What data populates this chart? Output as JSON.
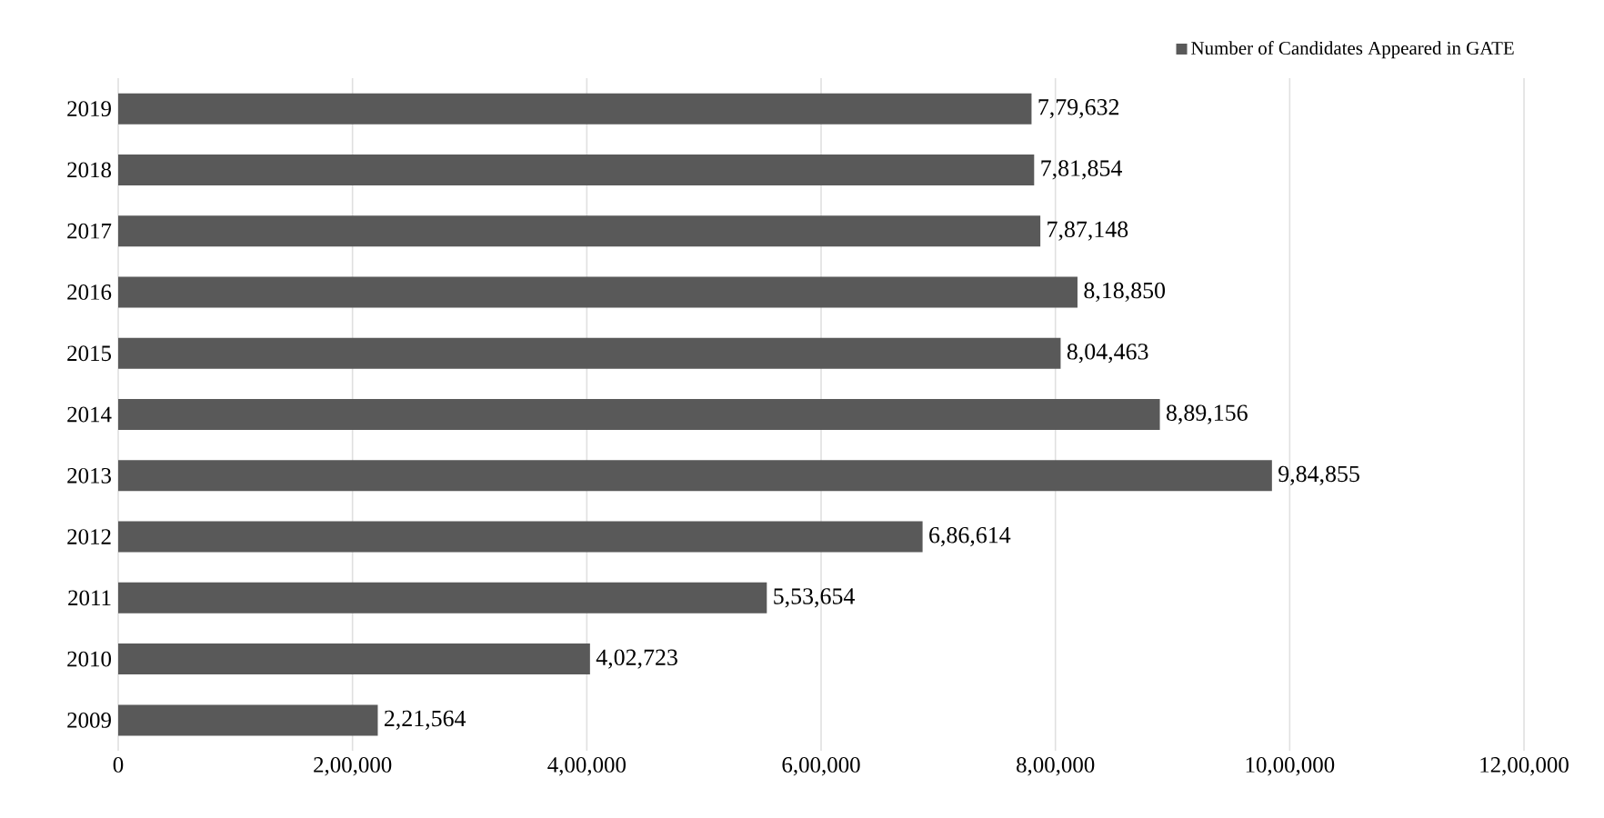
{
  "chart_data": {
    "type": "bar",
    "orientation": "horizontal",
    "categories": [
      "2019",
      "2018",
      "2017",
      "2016",
      "2015",
      "2014",
      "2013",
      "2012",
      "2011",
      "2010",
      "2009"
    ],
    "series": [
      {
        "name": "Number of Candidates Appeared in GATE",
        "color": "#595959",
        "values": [
          779632,
          781854,
          787148,
          818850,
          804463,
          889156,
          984855,
          686614,
          553654,
          402723,
          221564
        ],
        "value_labels": [
          "7,79,632",
          "7,81,854",
          "7,87,148",
          "8,18,850",
          "8,04,463",
          "8,89,156",
          "9,84,855",
          "6,86,614",
          "5,53,654",
          "4,02,723",
          "2,21,564"
        ]
      }
    ],
    "xlim": [
      0,
      1200000
    ],
    "xticks": [
      0,
      {
        "value": 200000,
        "label": "2,00,000"
      },
      {
        "value": 400000,
        "label": "4,00,000"
      },
      {
        "value": 600000,
        "label": "6,00,000"
      },
      {
        "value": 800000,
        "label": "8,00,000"
      },
      {
        "value": 1000000,
        "label": "10,00,000"
      },
      {
        "value": 1200000,
        "label": "12,00,000"
      }
    ],
    "grid": "x",
    "legend": "top right"
  }
}
